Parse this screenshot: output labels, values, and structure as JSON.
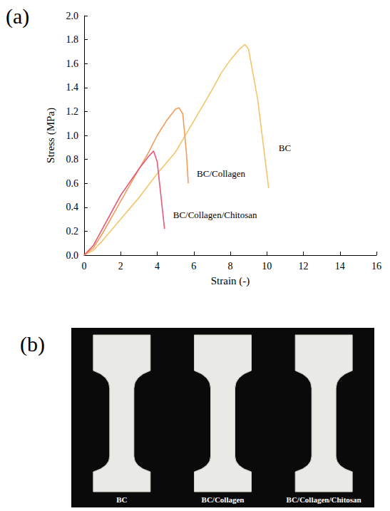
{
  "chart_data": {
    "type": "line",
    "x_label": "Strain (-)",
    "y_label": "Stress (MPa)",
    "xlim": [
      0,
      16
    ],
    "xticks": [
      0,
      2,
      4,
      6,
      8,
      10,
      12,
      14,
      16
    ],
    "ylim": [
      0,
      2
    ],
    "yticks": [
      {
        "value": 0,
        "label": "0.0"
      },
      0.2,
      0.4,
      0.6,
      0.8,
      {
        "value": 1,
        "label": "1.0"
      },
      1.2,
      1.4,
      1.6,
      1.8,
      {
        "value": 2,
        "label": "2.0"
      }
    ],
    "grid": false,
    "series": [
      {
        "name": "BC",
        "color": "#f5c56b",
        "x": [
          0,
          0.5,
          1,
          2,
          3,
          4,
          5,
          6,
          7,
          7.5,
          8,
          8.5,
          8.8,
          9.0,
          9.5,
          10.1
        ],
        "values": [
          0,
          0.04,
          0.12,
          0.3,
          0.48,
          0.68,
          0.86,
          1.12,
          1.38,
          1.52,
          1.63,
          1.72,
          1.76,
          1.72,
          1.3,
          0.56
        ]
      },
      {
        "name": "BC/Collagen",
        "color": "#f39c5a",
        "x": [
          0,
          0.5,
          1,
          2,
          3,
          3.5,
          4,
          4.5,
          5,
          5.2,
          5.4,
          5.6,
          5.7
        ],
        "values": [
          0,
          0.06,
          0.18,
          0.45,
          0.72,
          0.85,
          1.0,
          1.12,
          1.22,
          1.23,
          1.18,
          0.85,
          0.6
        ]
      },
      {
        "name": "BC/Collagen/Chitosan",
        "color": "#e8587a",
        "x": [
          0,
          0.5,
          1,
          2,
          3,
          3.5,
          3.8,
          4.0,
          4.2,
          4.4
        ],
        "values": [
          0,
          0.08,
          0.22,
          0.5,
          0.72,
          0.82,
          0.87,
          0.78,
          0.5,
          0.22
        ]
      }
    ]
  },
  "panel_labels": {
    "a": "(a)",
    "b": "(b)"
  },
  "photo": {
    "specimens": [
      "BC",
      "BC/Collagen",
      "BC/Collagen/Chitosan"
    ]
  }
}
